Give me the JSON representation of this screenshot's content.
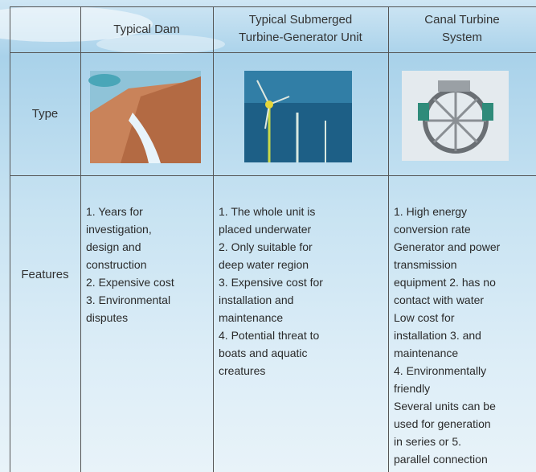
{
  "table": {
    "header": [
      [
        "Typical Dam"
      ],
      [
        "Typical Submerged",
        "Turbine-Generator Unit"
      ],
      [
        "Canal Turbine",
        "System"
      ]
    ],
    "rows": [
      {
        "label": "Type"
      },
      {
        "label": "Features",
        "cells": [
          [
            "1. Years for",
            "investigation,",
            "design and",
            "construction",
            "2. Expensive cost",
            "3. Environmental",
            "disputes"
          ],
          [
            "1. The whole unit is",
            "placed underwater",
            "2. Only suitable for",
            "deep water region",
            "3. Expensive cost for",
            "installation and",
            "maintenance",
            "4. Potential threat to",
            "boats and aquatic",
            "creatures"
          ],
          [
            "1. High energy",
            "conversion rate",
            "Generator and power",
            "transmission",
            "equipment  2. has no",
            "contact with water",
            "Low cost for",
            "installation  3. and",
            "maintenance",
            "4. Environmentally",
            "friendly",
            "Several units can be",
            "used for generation",
            "in series or   5.",
            "parallel connection"
          ]
        ]
      }
    ]
  }
}
